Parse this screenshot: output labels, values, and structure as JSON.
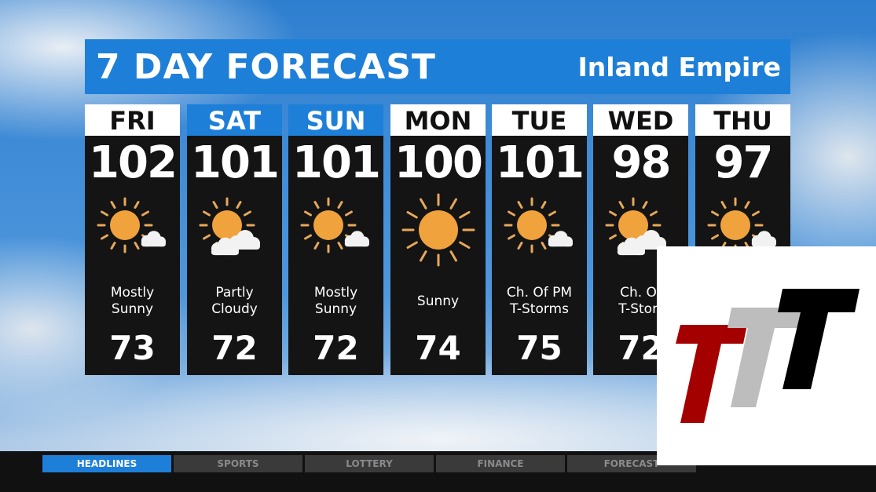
{
  "header": {
    "title": "7 DAY FORECAST",
    "region": "Inland Empire"
  },
  "colors": {
    "accent": "#1e7fd8",
    "panel": "#141414",
    "sun": "#f0a23c"
  },
  "days": [
    {
      "day": "FRI",
      "high": "102",
      "icon": "mostly-sunny-icon",
      "desc1": "Mostly",
      "desc2": "Sunny",
      "low": "73",
      "label_style": "white"
    },
    {
      "day": "SAT",
      "high": "101",
      "icon": "partly-cloudy-icon",
      "desc1": "Partly",
      "desc2": "Cloudy",
      "low": "72",
      "label_style": "blue"
    },
    {
      "day": "SUN",
      "high": "101",
      "icon": "mostly-sunny-icon",
      "desc1": "Mostly",
      "desc2": "Sunny",
      "low": "72",
      "label_style": "blue"
    },
    {
      "day": "MON",
      "high": "100",
      "icon": "sunny-icon",
      "desc1": "Sunny",
      "desc2": "",
      "low": "74",
      "label_style": "white"
    },
    {
      "day": "TUE",
      "high": "101",
      "icon": "mostly-sunny-icon",
      "desc1": "Ch. Of PM",
      "desc2": "T-Storms",
      "low": "75",
      "label_style": "white"
    },
    {
      "day": "WED",
      "high": "98",
      "icon": "partly-cloudy-icon",
      "desc1": "Ch. Of",
      "desc2": "T-Storr",
      "low": "72",
      "label_style": "white"
    },
    {
      "day": "THU",
      "high": "97",
      "icon": "mostly-sunny-icon",
      "desc1": "",
      "desc2": "",
      "low": "",
      "label_style": "white"
    }
  ],
  "ticker": {
    "tabs": [
      "HEADLINES",
      "SPORTS",
      "LOTTERY",
      "FINANCE",
      "FORECAST"
    ],
    "active": "HEADLINES"
  },
  "logo": {
    "text": "TTT",
    "colors": [
      "#a50000",
      "#bdbdbd",
      "#000000"
    ]
  }
}
